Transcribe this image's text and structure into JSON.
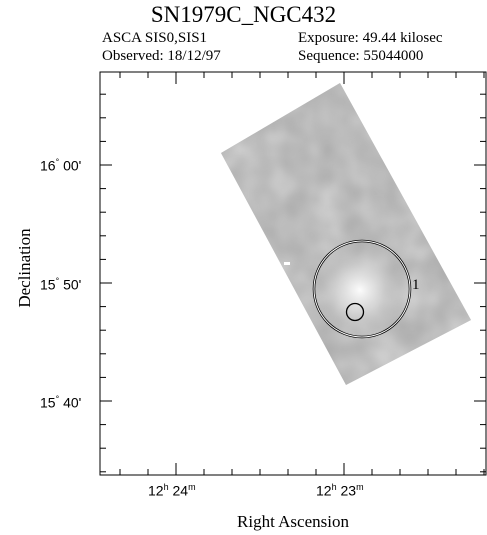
{
  "title": "SN1979C_NGC432",
  "header": {
    "instrument": "ASCA SIS0,SIS1",
    "exposure": "Exposure: 49.44 kilosec",
    "observed": "Observed: 18/12/97",
    "sequence": "Sequence: 55044000"
  },
  "axes": {
    "ylabel": "Declination",
    "xlabel": "Right Ascension",
    "yticks": [
      {
        "deg": "16",
        "min": "00'"
      },
      {
        "deg": "15",
        "min": "50'"
      },
      {
        "deg": "15",
        "min": "40'"
      }
    ],
    "xticks": [
      {
        "h": "12",
        "m": "24"
      },
      {
        "h": "12",
        "m": "23"
      }
    ]
  },
  "source_region_label": "1",
  "colors": {
    "field": "#a9a9a9",
    "background": "#ffffff",
    "circle": "#ffffff"
  }
}
